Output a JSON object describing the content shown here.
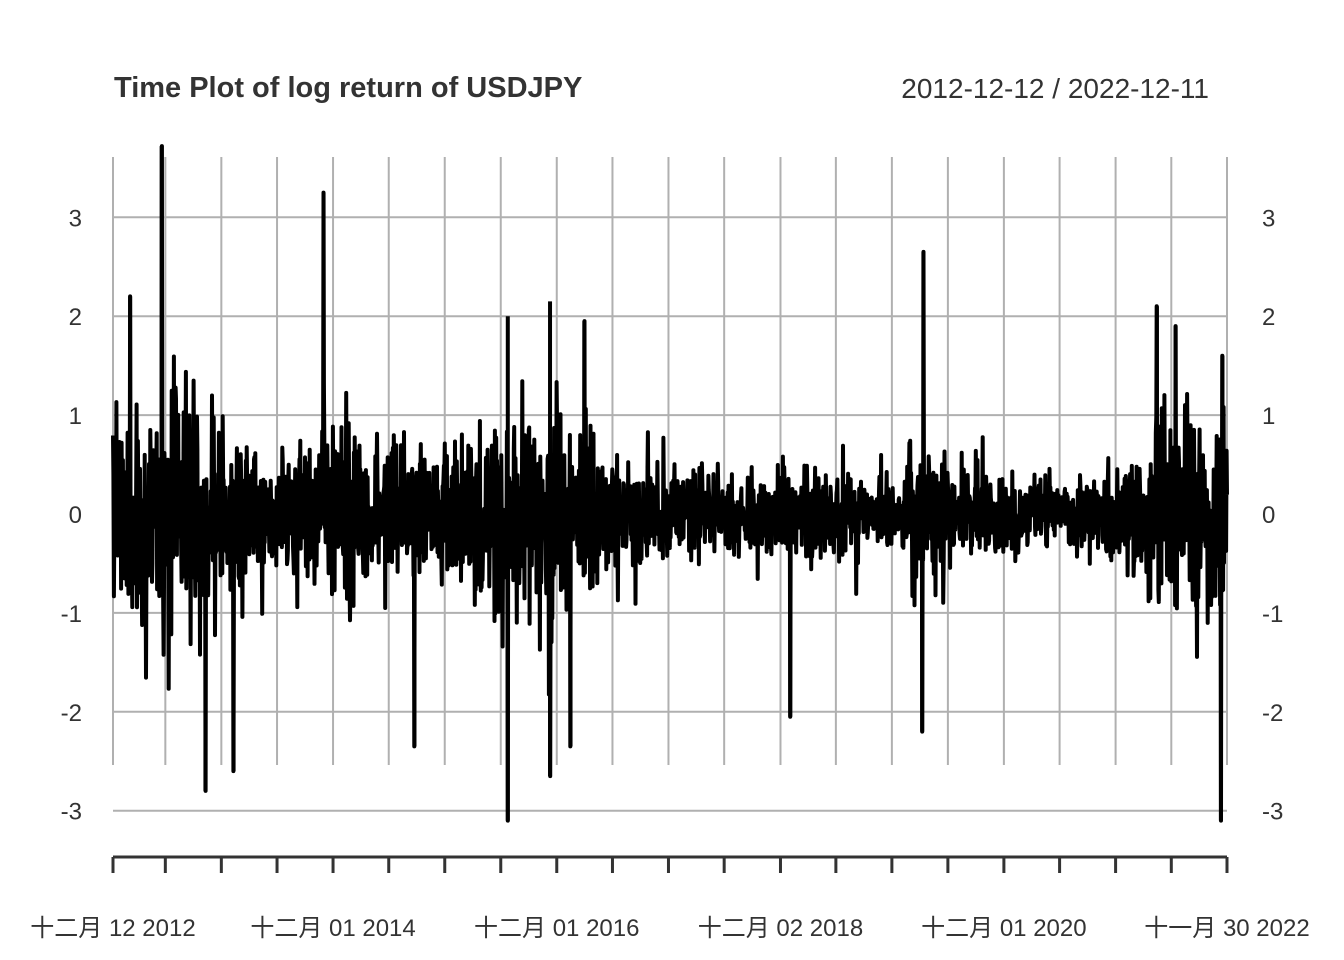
{
  "chart_data": {
    "type": "line",
    "title": "Time Plot of log return of USDJPY",
    "subtitle": "2012-12-12 / 2022-12-11",
    "xlabel": "",
    "ylabel": "",
    "x_range": [
      "2012-12-12",
      "2022-11-30"
    ],
    "ylim": [
      -3.4,
      3.7
    ],
    "y_ticks": [
      -3,
      -2,
      -1,
      0,
      1,
      2,
      3
    ],
    "y_tick_labels": [
      "-3",
      "-2",
      "-1",
      "0",
      "1",
      "2",
      "3"
    ],
    "x_tick_labels": [
      "十二月 12 2012",
      "十二月 01 2014",
      "十二月 01 2016",
      "十二月 02 2018",
      "十二月 01 2020",
      "十一月 30 2022"
    ],
    "x_tick_dates": [
      "2012-12-12",
      "2014-12-01",
      "2016-12-01",
      "2018-12-02",
      "2020-12-01",
      "2022-11-30"
    ],
    "x_minor_ticks": [
      "2013-06-01",
      "2013-12-01",
      "2014-06-01",
      "2014-12-01",
      "2015-06-01",
      "2015-12-01",
      "2016-06-01",
      "2016-12-01",
      "2017-06-01",
      "2017-12-01",
      "2018-06-01",
      "2018-12-02",
      "2019-06-01",
      "2019-12-01",
      "2020-06-01",
      "2020-12-01",
      "2021-06-01",
      "2021-12-01",
      "2022-06-01"
    ],
    "grid": true,
    "line_color": "#000000",
    "series": [
      {
        "values_summary": "daily log returns, approx 2600 observations",
        "peaks": [
          {
            "x": "2013-05-20",
            "y": 3.72
          },
          {
            "x": "2014-10-31",
            "y": 3.25
          },
          {
            "x": "2016-11-09",
            "y": 2.15
          },
          {
            "x": "2016-06-24",
            "y": 2.0
          },
          {
            "x": "2017-03-01",
            "y": 1.95
          },
          {
            "x": "2020-03-13",
            "y": 2.65
          },
          {
            "x": "2022-04-15",
            "y": 2.1
          },
          {
            "x": "2022-06-15",
            "y": 1.9
          },
          {
            "x": "2022-11-15",
            "y": 1.6
          },
          {
            "x": "2013-02-06",
            "y": 2.2
          }
        ],
        "troughs": [
          {
            "x": "2013-10-10",
            "y": -2.8
          },
          {
            "x": "2014-01-10",
            "y": -2.6
          },
          {
            "x": "2015-08-24",
            "y": -2.35
          },
          {
            "x": "2016-06-24",
            "y": -3.1
          },
          {
            "x": "2016-11-09",
            "y": -2.65
          },
          {
            "x": "2017-01-15",
            "y": -2.35
          },
          {
            "x": "2019-01-03",
            "y": -2.05
          },
          {
            "x": "2020-03-09",
            "y": -2.2
          },
          {
            "x": "2022-11-10",
            "y": -3.1
          }
        ]
      }
    ]
  }
}
